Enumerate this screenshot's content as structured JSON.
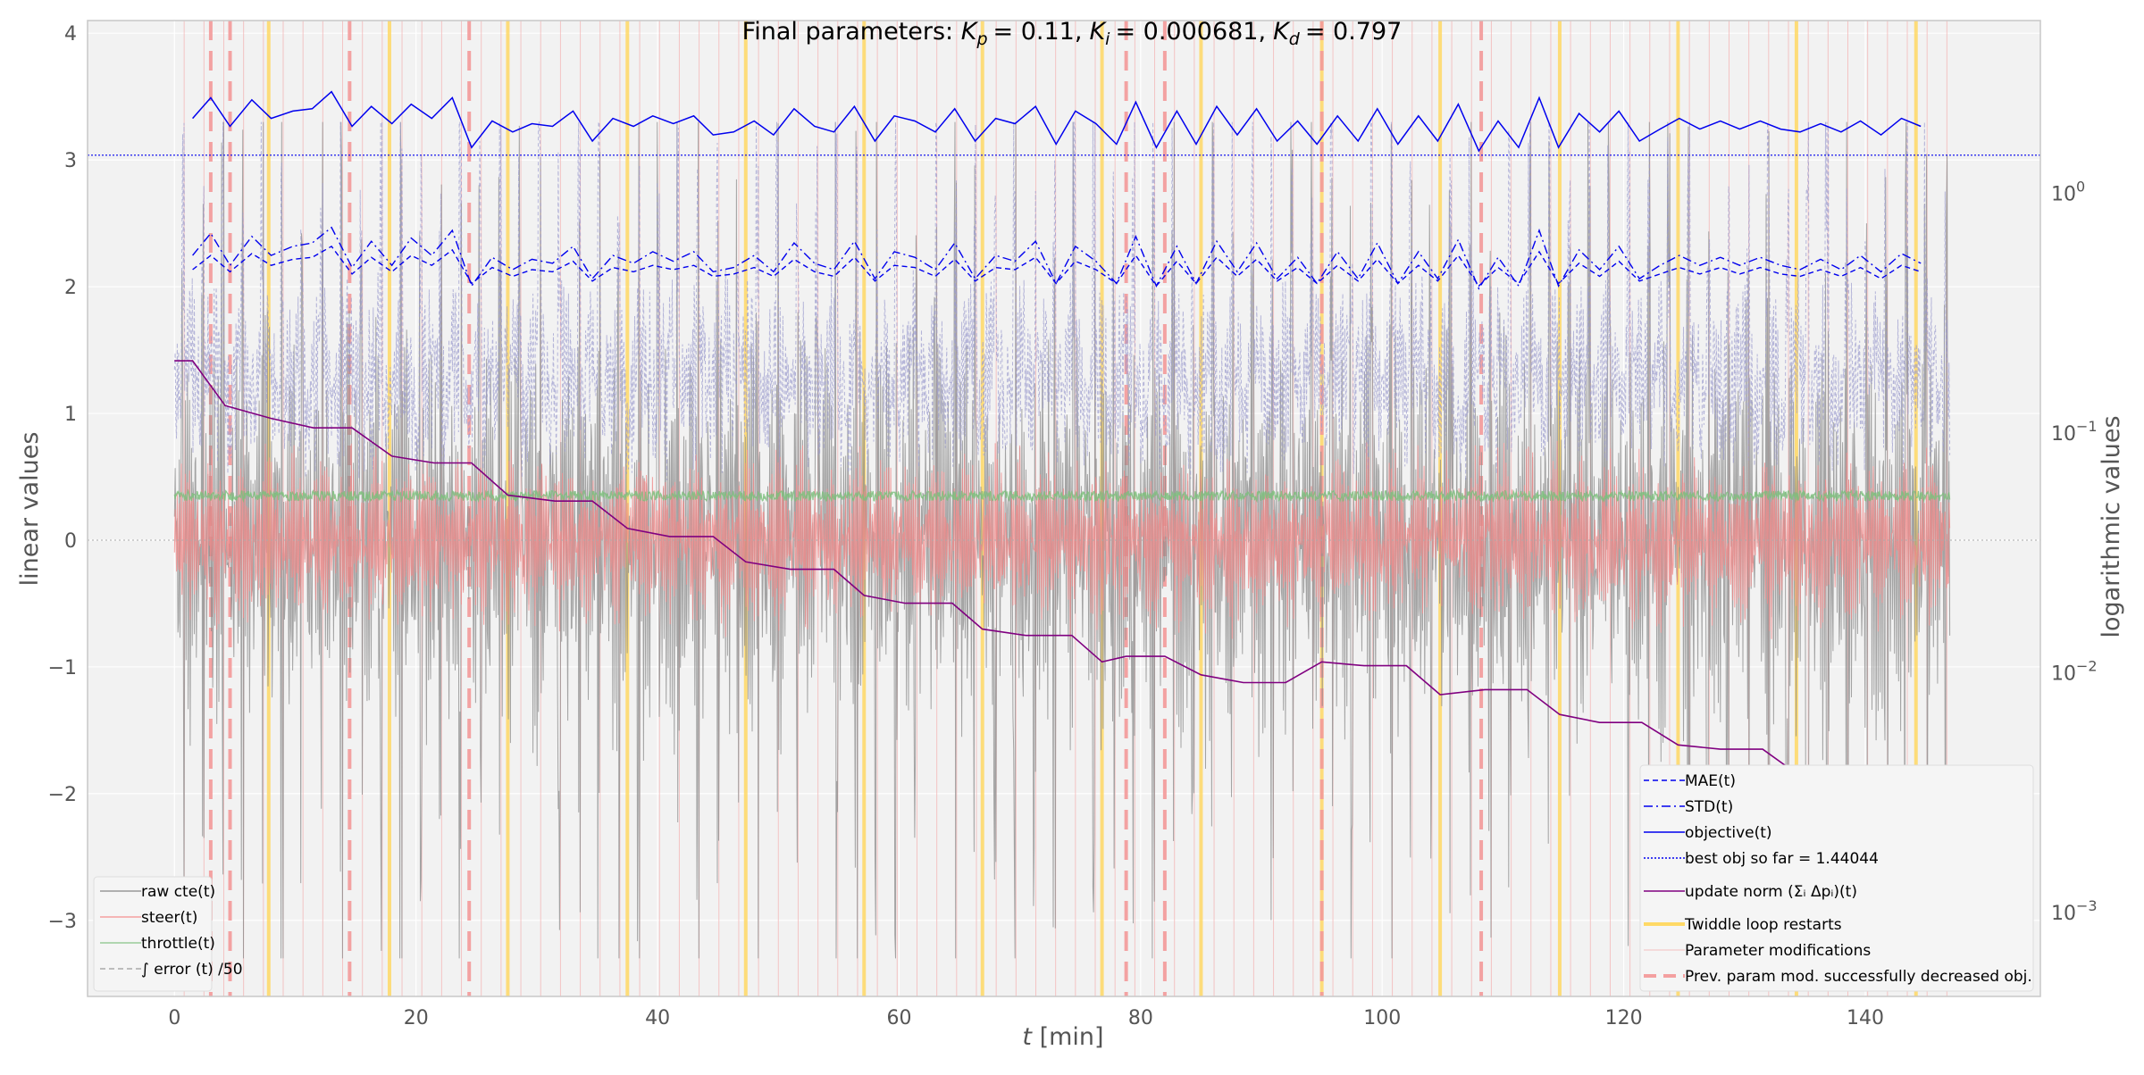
{
  "chart_data": {
    "type": "line",
    "title": "Final parameters: K_p = 0.11, K_i = 0.000681, K_d = 0.797",
    "title_parts": {
      "prefix": "Final parameters: ",
      "kp_label": "K",
      "kp_sub": "p",
      "kp_value": "= 0.11,",
      "ki_label": "K",
      "ki_sub": "i",
      "ki_value": "= 0.000681,",
      "kd_label": "K",
      "kd_sub": "d",
      "kd_value": "= 0.797"
    },
    "xlabel_main": "t",
    "xlabel_unit": " [min]",
    "ylabel_left": "linear values",
    "ylabel_right": "logarithmic values",
    "xlim": [
      -7.2,
      154.5
    ],
    "ylim_left": [
      -3.6,
      4.1
    ],
    "ylim_right_log10": [
      -3.35,
      0.72
    ],
    "x_ticks": [
      0,
      20,
      40,
      60,
      80,
      100,
      120,
      140
    ],
    "y_ticks_left": [
      -3,
      -2,
      -1,
      0,
      1,
      2,
      3,
      4
    ],
    "y_ticks_right": [
      {
        "value": 1,
        "base": "10",
        "exp": "0"
      },
      {
        "value": 0.1,
        "base": "10",
        "exp": "−1"
      },
      {
        "value": 0.01,
        "base": "10",
        "exp": "−2"
      },
      {
        "value": 0.001,
        "base": "10",
        "exp": "−3"
      }
    ],
    "grid": true,
    "legend_left": [
      {
        "label": "raw cte(t)",
        "color": "#999999",
        "style": "solid"
      },
      {
        "label": "steer(t)",
        "color": "#f5a0a0",
        "style": "solid"
      },
      {
        "label": "throttle(t)",
        "color": "#99cc99",
        "style": "solid"
      },
      {
        "label": "∫ error (t) /50",
        "color": "#aaaaaa",
        "style": "dashed"
      }
    ],
    "legend_right": [
      {
        "label": "MAE(t)",
        "color": "#0000ee",
        "style": "dashed"
      },
      {
        "label": "STD(t)",
        "color": "#0000ee",
        "style": "dashdot"
      },
      {
        "label": "objective(t)",
        "color": "#0000ee",
        "style": "solid"
      },
      {
        "label": "best obj so far  = 1.44044",
        "color": "#0000ee",
        "style": "dotted"
      },
      {
        "label": "update norm (Σᵢ Δpᵢ)(t)",
        "color": "#800080",
        "style": "solid"
      },
      {
        "label": "Twiddle loop restarts",
        "color": "#ffd966",
        "style": "thick"
      },
      {
        "label": "Parameter modifications",
        "color": "#f4c0c0",
        "style": "thin"
      },
      {
        "label": "Prev. param mod. successfully decreased obj.",
        "color": "#f4a0a0",
        "style": "thickdashed"
      }
    ],
    "best_obj_log_value": 1.44044,
    "twiddle_restarts": [
      7.8,
      17.8,
      27.6,
      37.5,
      47.3,
      57.1,
      66.9,
      76.8,
      85.0,
      95.0,
      104.8,
      114.7,
      124.5,
      134.3,
      144.2
    ],
    "successful_mods": [
      3.0,
      4.6,
      14.5,
      24.4,
      78.8,
      82.0,
      95.0,
      108.2
    ],
    "param_mods_interval": 1.64,
    "objective": {
      "x": [
        1.5,
        3.0,
        4.6,
        6.4,
        8.0,
        9.8,
        11.4,
        13.0,
        14.7,
        16.3,
        18.0,
        19.6,
        21.3,
        23.0,
        24.6,
        26.3,
        28.0,
        29.6,
        31.3,
        33.0,
        34.6,
        36.3,
        38.0,
        39.6,
        41.3,
        43.0,
        44.6,
        46.3,
        48.0,
        49.6,
        51.3,
        53.0,
        54.6,
        56.3,
        58.0,
        59.6,
        61.3,
        63.0,
        64.6,
        66.3,
        68.0,
        69.6,
        71.3,
        73.0,
        74.6,
        76.3,
        78.0,
        79.6,
        81.3,
        83.0,
        84.6,
        86.3,
        88.0,
        89.6,
        91.3,
        93.0,
        94.6,
        96.3,
        98.0,
        99.6,
        101.3,
        103.0,
        104.6,
        106.3,
        108.0,
        109.6,
        111.3,
        113.0,
        114.6,
        116.3,
        118.0,
        119.6,
        121.3,
        123.0,
        124.6,
        126.3,
        128.0,
        129.6,
        131.3,
        133.0,
        134.6,
        136.3,
        138.0,
        139.6,
        141.3,
        143.0,
        144.6
      ],
      "y": [
        2.05,
        2.5,
        1.9,
        2.45,
        2.05,
        2.2,
        2.25,
        2.65,
        1.9,
        2.3,
        1.95,
        2.35,
        2.05,
        2.5,
        1.55,
        2.0,
        1.8,
        1.95,
        1.9,
        2.2,
        1.65,
        2.05,
        1.9,
        2.1,
        1.95,
        2.1,
        1.75,
        1.8,
        2.0,
        1.75,
        2.25,
        1.9,
        1.8,
        2.3,
        1.65,
        2.1,
        2.0,
        1.8,
        2.25,
        1.65,
        2.05,
        1.95,
        2.3,
        1.6,
        2.2,
        1.95,
        1.6,
        2.4,
        1.55,
        2.2,
        1.6,
        2.3,
        1.75,
        2.25,
        1.65,
        2.0,
        1.6,
        2.1,
        1.65,
        2.25,
        1.6,
        2.1,
        1.65,
        2.35,
        1.5,
        2.0,
        1.55,
        2.5,
        1.55,
        2.15,
        1.8,
        2.2,
        1.65,
        1.85,
        2.05,
        1.85,
        2.0,
        1.85,
        2.0,
        1.85,
        1.8,
        1.95,
        1.8,
        2.0,
        1.75,
        2.05,
        1.9
      ]
    },
    "mae": {
      "x": [
        1.5,
        3.0,
        4.6,
        6.4,
        8.0,
        9.8,
        11.4,
        13.0,
        14.7,
        16.3,
        18.0,
        19.6,
        21.3,
        23.0,
        24.6,
        26.3,
        28.0,
        29.6,
        31.3,
        33.0,
        34.6,
        36.3,
        38.0,
        39.6,
        41.3,
        43.0,
        44.6,
        46.3,
        48.0,
        49.6,
        51.3,
        53.0,
        54.6,
        56.3,
        58.0,
        59.6,
        61.3,
        63.0,
        64.6,
        66.3,
        68.0,
        69.6,
        71.3,
        73.0,
        74.6,
        76.3,
        78.0,
        79.6,
        81.3,
        83.0,
        84.6,
        86.3,
        88.0,
        89.6,
        91.3,
        93.0,
        94.6,
        96.3,
        98.0,
        99.6,
        101.3,
        103.0,
        104.6,
        106.3,
        108.0,
        109.6,
        111.3,
        113.0,
        114.6,
        116.3,
        118.0,
        119.6,
        121.3,
        123.0,
        124.6,
        126.3,
        128.0,
        129.6,
        131.3,
        133.0,
        134.6,
        136.3,
        138.0,
        139.6,
        141.3,
        143.0,
        144.6
      ],
      "y": [
        0.48,
        0.55,
        0.47,
        0.56,
        0.5,
        0.53,
        0.54,
        0.6,
        0.46,
        0.54,
        0.47,
        0.55,
        0.5,
        0.58,
        0.42,
        0.49,
        0.45,
        0.48,
        0.47,
        0.52,
        0.43,
        0.49,
        0.47,
        0.5,
        0.48,
        0.5,
        0.45,
        0.46,
        0.49,
        0.45,
        0.53,
        0.47,
        0.45,
        0.54,
        0.43,
        0.5,
        0.49,
        0.45,
        0.53,
        0.43,
        0.49,
        0.48,
        0.54,
        0.42,
        0.52,
        0.48,
        0.42,
        0.55,
        0.41,
        0.52,
        0.42,
        0.54,
        0.45,
        0.53,
        0.43,
        0.49,
        0.42,
        0.5,
        0.43,
        0.53,
        0.42,
        0.5,
        0.43,
        0.55,
        0.41,
        0.49,
        0.42,
        0.57,
        0.42,
        0.51,
        0.45,
        0.52,
        0.43,
        0.46,
        0.49,
        0.46,
        0.49,
        0.46,
        0.49,
        0.46,
        0.45,
        0.48,
        0.45,
        0.49,
        0.44,
        0.5,
        0.47
      ]
    },
    "std": {
      "x": [
        1.5,
        3.0,
        4.6,
        6.4,
        8.0,
        9.8,
        11.4,
        13.0,
        14.7,
        16.3,
        18.0,
        19.6,
        21.3,
        23.0,
        24.6,
        26.3,
        28.0,
        29.6,
        31.3,
        33.0,
        34.6,
        36.3,
        38.0,
        39.6,
        41.3,
        43.0,
        44.6,
        46.3,
        48.0,
        49.6,
        51.3,
        53.0,
        54.6,
        56.3,
        58.0,
        59.6,
        61.3,
        63.0,
        64.6,
        66.3,
        68.0,
        69.6,
        71.3,
        73.0,
        74.6,
        76.3,
        78.0,
        79.6,
        81.3,
        83.0,
        84.6,
        86.3,
        88.0,
        89.6,
        91.3,
        93.0,
        94.6,
        96.3,
        98.0,
        99.6,
        101.3,
        103.0,
        104.6,
        106.3,
        108.0,
        109.6,
        111.3,
        113.0,
        114.6,
        116.3,
        118.0,
        119.6,
        121.3,
        123.0,
        124.6,
        126.3,
        128.0,
        129.6,
        131.3,
        133.0,
        134.6,
        136.3,
        138.0,
        139.6,
        141.3,
        143.0,
        144.6
      ],
      "y": [
        0.55,
        0.68,
        0.5,
        0.66,
        0.55,
        0.6,
        0.62,
        0.72,
        0.49,
        0.63,
        0.5,
        0.65,
        0.55,
        0.7,
        0.41,
        0.54,
        0.48,
        0.53,
        0.51,
        0.6,
        0.44,
        0.55,
        0.51,
        0.57,
        0.52,
        0.57,
        0.47,
        0.49,
        0.55,
        0.47,
        0.62,
        0.51,
        0.48,
        0.63,
        0.44,
        0.57,
        0.54,
        0.48,
        0.62,
        0.44,
        0.55,
        0.52,
        0.63,
        0.42,
        0.6,
        0.52,
        0.42,
        0.66,
        0.41,
        0.6,
        0.42,
        0.63,
        0.47,
        0.62,
        0.44,
        0.54,
        0.42,
        0.57,
        0.44,
        0.62,
        0.42,
        0.57,
        0.44,
        0.64,
        0.4,
        0.54,
        0.41,
        0.7,
        0.41,
        0.58,
        0.48,
        0.6,
        0.44,
        0.5,
        0.55,
        0.5,
        0.54,
        0.5,
        0.54,
        0.5,
        0.48,
        0.53,
        0.48,
        0.55,
        0.47,
        0.56,
        0.51
      ]
    },
    "update_norm": {
      "x": [
        0,
        1.5,
        4.2,
        8.0,
        11.5,
        14.7,
        18.0,
        21.5,
        24.6,
        27.6,
        31.5,
        34.6,
        37.5,
        41.0,
        44.6,
        47.3,
        51.0,
        54.6,
        57.1,
        60.5,
        64.4,
        66.9,
        70.5,
        74.3,
        76.8,
        78.8,
        82.0,
        85.0,
        88.5,
        92.0,
        95.0,
        98.5,
        102.0,
        104.8,
        108.5,
        112.0,
        114.7,
        118.0,
        121.5,
        124.5,
        128.0,
        131.5,
        134.3,
        138.0,
        141.5,
        144.2
      ],
      "y": [
        0.2,
        0.2,
        0.13,
        0.115,
        0.105,
        0.105,
        0.08,
        0.075,
        0.075,
        0.055,
        0.052,
        0.052,
        0.04,
        0.037,
        0.037,
        0.029,
        0.027,
        0.027,
        0.021,
        0.0195,
        0.0195,
        0.0152,
        0.0143,
        0.0143,
        0.0111,
        0.0117,
        0.0117,
        0.0098,
        0.0091,
        0.0091,
        0.0111,
        0.0107,
        0.0107,
        0.0081,
        0.0085,
        0.0085,
        0.0067,
        0.0062,
        0.0062,
        0.005,
        0.0048,
        0.0048,
        0.0038,
        0.0035,
        0.0035,
        0.0026
      ]
    },
    "signals": {
      "t_start": 0,
      "t_end": 147,
      "lap_period_min": 1.64,
      "raw_cte_range": [
        -3.3,
        3.3
      ],
      "steer_range": [
        -0.9,
        0.9
      ],
      "throttle_level": 0.35,
      "integral_error_range": [
        -0.3,
        3.3
      ]
    }
  },
  "colors": {
    "axes_bg": "#f2f2f2",
    "axes_edge": "#c8c8c8",
    "grid": "#ffffff",
    "raw_cte": "#888888",
    "steer": "#f08a8a",
    "throttle": "#7dbf7d",
    "integral_error": "#9a9acd",
    "obj_blue": "#0000ee",
    "update_norm": "#800080",
    "twiddle": "#ffd966",
    "param_mod": "#f4b8b8",
    "success_mod": "#f49a9a"
  }
}
